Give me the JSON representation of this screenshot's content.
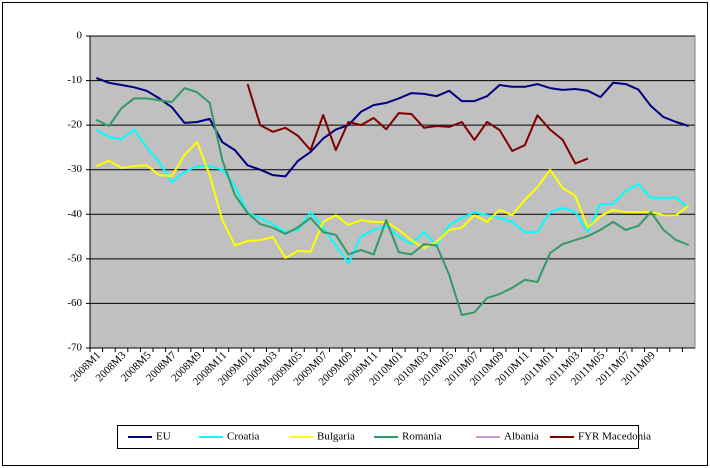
{
  "chart_data": {
    "type": "line",
    "categories": [
      "2008M1",
      null,
      "2008M3",
      null,
      "2008M5",
      null,
      "2008M7",
      null,
      "2008M9",
      null,
      "2008M11",
      null,
      "2009M01",
      null,
      "2009M03",
      null,
      "2009M05",
      null,
      "2009M07",
      null,
      "2009M09",
      null,
      "2009M11",
      null,
      "2010M01",
      null,
      "2010M03",
      null,
      "2010M05",
      null,
      "2010M07",
      null,
      "2010M09",
      null,
      "2010M11",
      null,
      "2011M01",
      null,
      "2011M03",
      null,
      "2011M05",
      null,
      "2011M07",
      null,
      "2011M09",
      null,
      null,
      null
    ],
    "ylim": [
      -70,
      0
    ],
    "yticks": [
      0,
      -10,
      -20,
      -30,
      -40,
      -50,
      -60,
      -70
    ],
    "grid": true,
    "legend": "bottom",
    "series": [
      {
        "name": "EU",
        "color": "#000080",
        "values": [
          -9.4,
          -10.5,
          -11,
          -11.5,
          -12.3,
          -14,
          -16,
          -19.5,
          -19.3,
          -18.6,
          -23.8,
          -25.6,
          -29,
          -30,
          -31.2,
          -31.5,
          -28,
          -26,
          -23,
          -21,
          -20,
          -17,
          -15.5,
          -15,
          -14,
          -12.8,
          -13,
          -13.5,
          -12.3,
          -14.6,
          -14.6,
          -13.5,
          -11,
          -11.4,
          -11.4,
          -10.8,
          -11.7,
          -12.1,
          -11.9,
          -12.3,
          -13.7,
          -10.5,
          -10.8,
          -12,
          -15.7,
          -18.2,
          -19.3,
          -20.2
        ]
      },
      {
        "name": "Croatia",
        "color": "#00ffff",
        "values": [
          -21,
          -22.7,
          -23.1,
          -21,
          -25,
          -28.3,
          -32.8,
          -30.5,
          -29.2,
          -29.2,
          -30,
          -33.7,
          -39.7,
          -40.8,
          -42.2,
          -44,
          -43.5,
          -39.5,
          -43,
          -47,
          -51,
          -45,
          -43.5,
          -42.6,
          -45,
          -46.7,
          -44,
          -47,
          -42.4,
          -40.8,
          -39.5,
          -40.2,
          -40.8,
          -41.7,
          -44,
          -44,
          -39.5,
          -38.6,
          -39.5,
          -44,
          -37.7,
          -37.7,
          -34.8,
          -33.2,
          -36.3,
          -36.3,
          -36.3,
          -38.6
        ]
      },
      {
        "name": "Bulgaria",
        "color": "#ffff00",
        "values": [
          -29.2,
          -28,
          -29.6,
          -29.2,
          -29,
          -31.2,
          -31.4,
          -26.7,
          -23.8,
          -31.2,
          -41.3,
          -47,
          -46,
          -45.8,
          -45.1,
          -49.8,
          -48.2,
          -48.4,
          -41.7,
          -40.2,
          -42.4,
          -41.3,
          -41.7,
          -41.7,
          -43.5,
          -45.8,
          -47.6,
          -46.2,
          -43.5,
          -43,
          -40.2,
          -41.7,
          -39,
          -40.2,
          -36.8,
          -33.9,
          -30,
          -34.1,
          -35.9,
          -43,
          -40.4,
          -39,
          -39.5,
          -39.5,
          -39.5,
          -40.2,
          -40.2,
          -38.1
        ]
      },
      {
        "name": "Romania",
        "color": "#339966",
        "values": [
          -18.8,
          -20.2,
          -16.2,
          -14,
          -14,
          -14.4,
          -14.8,
          -11.7,
          -12.6,
          -15,
          -27.8,
          -35.7,
          -39.7,
          -42.2,
          -43,
          -44.4,
          -42.9,
          -40.8,
          -44,
          -44.6,
          -49,
          -48,
          -49,
          -41.3,
          -48.5,
          -49,
          -46.7,
          -47,
          -53.6,
          -62.6,
          -62,
          -58.8,
          -57.9,
          -56.5,
          -54.7,
          -55.2,
          -48.7,
          -46.7,
          -45.8,
          -44.9,
          -43.5,
          -41.7,
          -43.5,
          -42.6,
          -39.5,
          -43.5,
          -45.8,
          -46.9
        ]
      },
      {
        "name": "Albania",
        "color": "#993399",
        "values": [
          null,
          null,
          null,
          null,
          null,
          null,
          null,
          null,
          null,
          null,
          null,
          null,
          null,
          null,
          null,
          null,
          null,
          null,
          null,
          null,
          null,
          null,
          null,
          null,
          null,
          null,
          null,
          null,
          null,
          null,
          null,
          null,
          null,
          null,
          null,
          null,
          null,
          null,
          null,
          null,
          null,
          null,
          null,
          null,
          null,
          null,
          null,
          null
        ]
      },
      {
        "name": "FYR Macedonia",
        "color": "#800000",
        "values": [
          null,
          null,
          null,
          null,
          null,
          null,
          null,
          null,
          null,
          null,
          null,
          null,
          -10.8,
          -20,
          -21.5,
          -20.6,
          -22.4,
          -25.6,
          -17.7,
          -25.6,
          -19.3,
          -20,
          -18.4,
          -20.9,
          -17.3,
          -17.5,
          -20.6,
          -20.2,
          -20.4,
          -19.3,
          -23.3,
          -19.3,
          -21.1,
          -25.8,
          -24.5,
          -17.8,
          -21,
          -23.3,
          -28.6,
          -27.5,
          null,
          null,
          null,
          null,
          null,
          null,
          null,
          null
        ]
      }
    ]
  }
}
